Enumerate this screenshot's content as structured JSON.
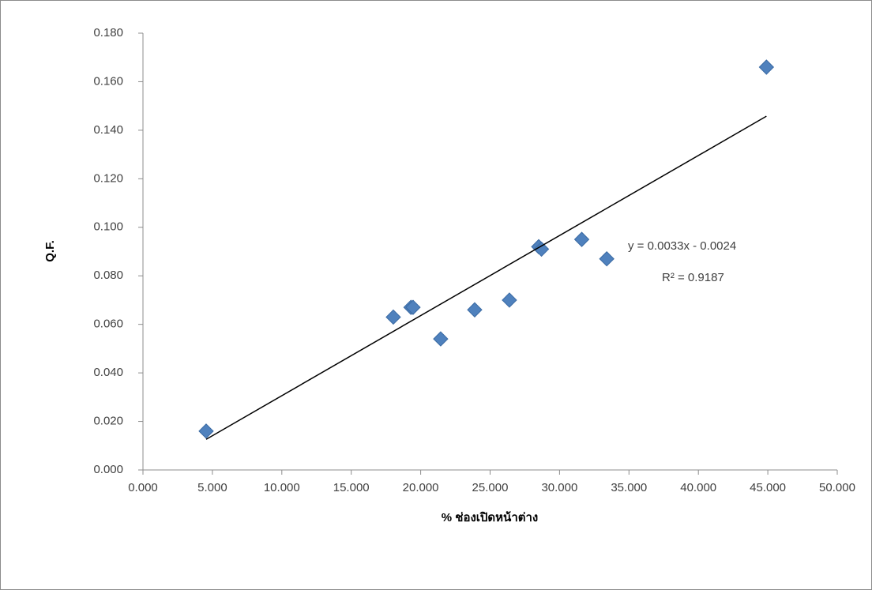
{
  "chart_data": {
    "type": "scatter",
    "x_label": "% ช่องเปิดหน้าต่าง",
    "y_label": "Q.F.",
    "series": [
      {
        "name": "Q.F.",
        "color": "#4f81bd",
        "x": [
          4.55,
          18.03,
          19.3,
          19.45,
          21.44,
          23.89,
          26.39,
          28.5,
          28.7,
          31.6,
          33.4,
          44.9
        ],
        "values": [
          0.016,
          0.063,
          0.067,
          0.067,
          0.054,
          0.066,
          0.07,
          0.092,
          0.091,
          0.095,
          0.087,
          0.166
        ]
      }
    ],
    "trendline": {
      "slope": 0.0033,
      "intercept": -0.0024,
      "equation": "y = 0.0033x - 0.0024",
      "r2_label": "R² = 0.9187",
      "color": "#000000"
    },
    "xlim": [
      0,
      50
    ],
    "xticks": [
      {
        "value": 0,
        "label": "0.000"
      },
      {
        "value": 5,
        "label": "5.000"
      },
      {
        "value": 10,
        "label": "10.000"
      },
      {
        "value": 15,
        "label": "15.000"
      },
      {
        "value": 20,
        "label": "20.000"
      },
      {
        "value": 25,
        "label": "25.000"
      },
      {
        "value": 30,
        "label": "30.000"
      },
      {
        "value": 35,
        "label": "35.000"
      },
      {
        "value": 40,
        "label": "40.000"
      },
      {
        "value": 45,
        "label": "45.000"
      },
      {
        "value": 50,
        "label": "50.000"
      }
    ],
    "ylim": [
      0,
      0.18
    ],
    "yticks": [
      {
        "value": 0,
        "label": "0.000"
      },
      {
        "value": 0.02,
        "label": "0.020"
      },
      {
        "value": 0.04,
        "label": "0.040"
      },
      {
        "value": 0.06,
        "label": "0.060"
      },
      {
        "value": 0.08,
        "label": "0.080"
      },
      {
        "value": 0.1,
        "label": "0.100"
      },
      {
        "value": 0.12,
        "label": "0.120"
      },
      {
        "value": 0.14,
        "label": "0.140"
      },
      {
        "value": 0.16,
        "label": "0.160"
      },
      {
        "value": 0.18,
        "label": "0.180"
      }
    ],
    "grid": false
  }
}
